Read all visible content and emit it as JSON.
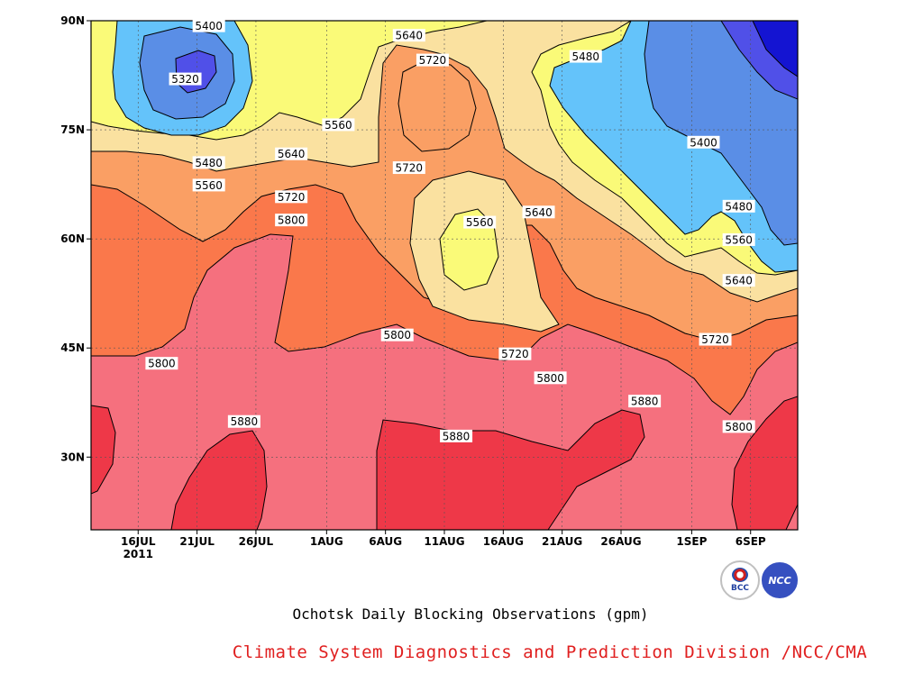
{
  "chart_data": {
    "type": "contour",
    "title": "Ochotsk Daily Blocking Observations (gpm)",
    "credit": "Climate System Diagnostics and Prediction Division /NCC/CMA",
    "logos": [
      "BCC",
      "NCC"
    ],
    "x_axis": {
      "range": [
        "2011-07-12",
        "2011-09-10"
      ],
      "ticks": [
        "16JUL",
        "21JUL",
        "26JUL",
        "1AUG",
        "6AUG",
        "11AUG",
        "16AUG",
        "21AUG",
        "26AUG",
        "1SEP",
        "6SEP"
      ],
      "tick_dates": [
        "2011-07-16",
        "2011-07-21",
        "2011-07-26",
        "2011-08-01",
        "2011-08-06",
        "2011-08-11",
        "2011-08-16",
        "2011-08-21",
        "2011-08-26",
        "2011-09-01",
        "2011-09-06"
      ],
      "year_label": "2011"
    },
    "y_axis": {
      "range": [
        20,
        90
      ],
      "ticks": [
        30,
        45,
        60,
        75,
        90
      ],
      "tick_labels": [
        "30N",
        "45N",
        "60N",
        "75N",
        "90N"
      ]
    },
    "grid": true,
    "contour_levels": [
      5320,
      5400,
      5480,
      5560,
      5640,
      5720,
      5800,
      5880
    ],
    "fill_colors": {
      "below_5320": "#1414d2",
      "5320_5400": "#5050e8",
      "5400_5480": "#5a8ee6",
      "5480_5560": "#64c3fa",
      "5560_5640": "#fafa78",
      "5640_5720": "#fae1a0",
      "5720_5800": "#fa9f64",
      "5800_5880": "#fa784b",
      "above_5880_band": "#f5707e",
      "above_5880": "#ee3848"
    },
    "contour_labels": [
      {
        "value": "5400",
        "date": "2011-07-22",
        "lat": 89.3
      },
      {
        "value": "5320",
        "date": "2011-07-20",
        "lat": 82.0
      },
      {
        "value": "5480",
        "date": "2011-07-22",
        "lat": 70.5
      },
      {
        "value": "5560",
        "date": "2011-07-22",
        "lat": 67.4
      },
      {
        "value": "5640",
        "date": "2011-07-29",
        "lat": 71.7
      },
      {
        "value": "5560",
        "date": "2011-08-02",
        "lat": 75.7
      },
      {
        "value": "5720",
        "date": "2011-07-29",
        "lat": 65.8
      },
      {
        "value": "5800",
        "date": "2011-07-29",
        "lat": 62.6
      },
      {
        "value": "5640",
        "date": "2011-08-08",
        "lat": 88.0
      },
      {
        "value": "5720",
        "date": "2011-08-10",
        "lat": 84.6
      },
      {
        "value": "5720",
        "date": "2011-08-08",
        "lat": 69.8
      },
      {
        "value": "5560",
        "date": "2011-08-14",
        "lat": 62.3
      },
      {
        "value": "5640",
        "date": "2011-08-19",
        "lat": 63.7
      },
      {
        "value": "5480",
        "date": "2011-08-23",
        "lat": 85.1
      },
      {
        "value": "5400",
        "date": "2011-09-02",
        "lat": 73.3
      },
      {
        "value": "5480",
        "date": "2011-09-05",
        "lat": 64.5
      },
      {
        "value": "5560",
        "date": "2011-09-05",
        "lat": 59.9
      },
      {
        "value": "5640",
        "date": "2011-09-05",
        "lat": 54.3
      },
      {
        "value": "5720",
        "date": "2011-09-03",
        "lat": 46.2
      },
      {
        "value": "5800",
        "date": "2011-08-07",
        "lat": 46.8
      },
      {
        "value": "5720",
        "date": "2011-08-17",
        "lat": 44.2
      },
      {
        "value": "5800",
        "date": "2011-08-20",
        "lat": 40.9
      },
      {
        "value": "5880",
        "date": "2011-08-28",
        "lat": 37.7
      },
      {
        "value": "5800",
        "date": "2011-09-05",
        "lat": 34.2
      },
      {
        "value": "5800",
        "date": "2011-07-18",
        "lat": 42.9
      },
      {
        "value": "5880",
        "date": "2011-07-25",
        "lat": 34.9
      },
      {
        "value": "5880",
        "date": "2011-08-12",
        "lat": 32.9
      }
    ]
  }
}
